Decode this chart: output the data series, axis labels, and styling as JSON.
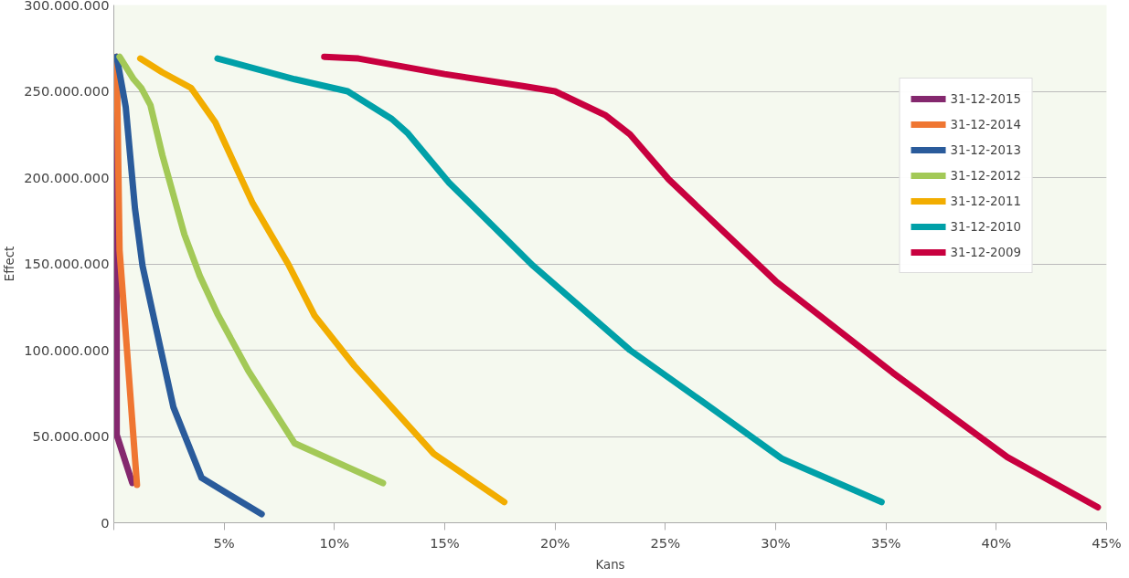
{
  "chart_data": {
    "type": "line",
    "xlabel": "Kans",
    "ylabel": "Effect",
    "xlim": [
      0,
      45
    ],
    "ylim": [
      0,
      300000000
    ],
    "xticks": [
      {
        "value": 0,
        "label": null
      },
      {
        "value": 5,
        "label": "5%"
      },
      {
        "value": 10,
        "label": "10%"
      },
      {
        "value": 15,
        "label": "15%"
      },
      {
        "value": 20,
        "label": "20%"
      },
      {
        "value": 25,
        "label": "25%"
      },
      {
        "value": 30,
        "label": "30%"
      },
      {
        "value": 35,
        "label": "35%"
      },
      {
        "value": 40,
        "label": "40%"
      },
      {
        "value": 45,
        "label": "45%"
      }
    ],
    "yticks": [
      0,
      {
        "value": 50000000,
        "label": "50.000.000"
      },
      {
        "value": 100000000,
        "label": "100.000.000"
      },
      {
        "value": 150000000,
        "label": "150.000.000"
      },
      {
        "value": 200000000,
        "label": "200.000.000"
      },
      {
        "value": 250000000,
        "label": "250.000.000"
      },
      {
        "value": 300000000,
        "label": "300.000.000"
      }
    ],
    "grid": "y",
    "legend": "top right",
    "marker": "none",
    "line_style": "solid",
    "series": [
      {
        "name": "31-12-2015",
        "color": "#84286e",
        "x": [
          0.13,
          0.13,
          0.84
        ],
        "values": [
          270000000,
          51000000,
          23000000
        ]
      },
      {
        "name": "31-12-2014",
        "color": "#ef7632",
        "x": [
          0.13,
          0.26,
          1.05
        ],
        "values": [
          270000000,
          158000000,
          22000000
        ]
      },
      {
        "name": "31-12-2013",
        "color": "#2a5b9b",
        "x": [
          0.13,
          0.54,
          0.96,
          1.3,
          2.1,
          2.7,
          3.98,
          6.7
        ],
        "values": [
          270000000,
          241000000,
          182000000,
          149000000,
          102000000,
          67000000,
          26000000,
          5000000
        ]
      },
      {
        "name": "31-12-2012",
        "color": "#a3c957",
        "x": [
          0.26,
          0.9,
          1.24,
          1.66,
          2.2,
          3.2,
          3.9,
          4.7,
          6.1,
          8.2,
          12.2
        ],
        "values": [
          270000000,
          257000000,
          252000000,
          242000000,
          213000000,
          167000000,
          143000000,
          121000000,
          88000000,
          46000000,
          23000000
        ]
      },
      {
        "name": "31-12-2011",
        "color": "#f2ad00",
        "x": [
          1.2,
          2.2,
          3.5,
          4.6,
          6.3,
          7.9,
          9.1,
          10.9,
          14.5,
          17.7
        ],
        "values": [
          269000000,
          261000000,
          252000000,
          232000000,
          185000000,
          150000000,
          120000000,
          91000000,
          40000000,
          12000000
        ]
      },
      {
        "name": "31-12-2010",
        "color": "#00a0a8",
        "x": [
          4.7,
          8.2,
          10.6,
          12.6,
          13.3,
          15.2,
          19.0,
          23.4,
          26.7,
          30.3,
          34.8
        ],
        "values": [
          269000000,
          257000000,
          250000000,
          234000000,
          226000000,
          197000000,
          149000000,
          100000000,
          70000000,
          37000000,
          12000000
        ]
      },
      {
        "name": "31-12-2009",
        "color": "#c8003f",
        "x": [
          9.54,
          11.09,
          14.99,
          18.54,
          20.0,
          22.3,
          23.4,
          25.15,
          30.0,
          35.3,
          40.5,
          44.6
        ],
        "values": [
          270000000,
          269000000,
          260000000,
          253000000,
          250000000,
          236000000,
          225000000,
          199000000,
          140000000,
          87000000,
          38000000,
          9000000
        ]
      }
    ]
  }
}
